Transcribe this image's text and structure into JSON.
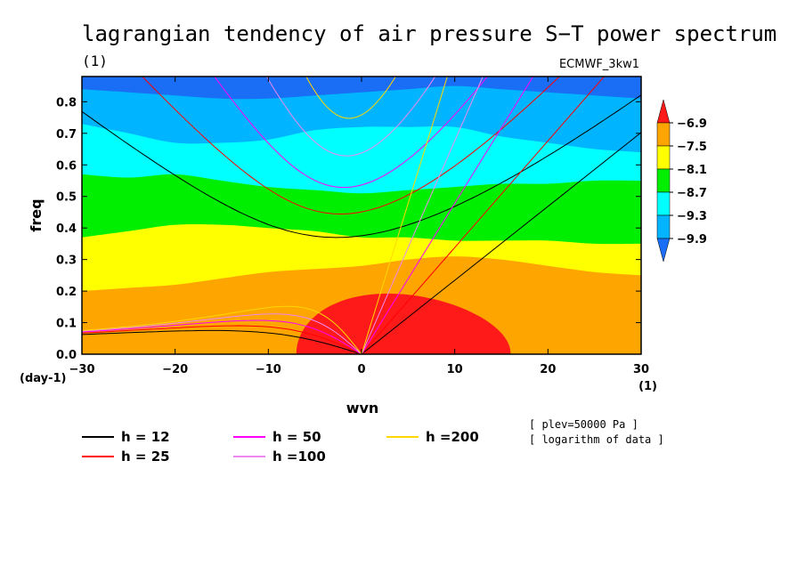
{
  "chart_data": {
    "type": "contourf",
    "title": "lagrangian tendency of air pressure S−T power spectrum",
    "subtitle_unit": "(1)",
    "dataset_label": "ECMWF_3kw1",
    "xlabel": "wvn",
    "ylabel": "freq",
    "x_unit": "(1)",
    "y_unit": "(day-1)",
    "xlim": [
      -30,
      30
    ],
    "ylim": [
      0,
      0.88
    ],
    "x_ticks": [
      -30,
      -20,
      -10,
      0,
      10,
      20,
      30
    ],
    "x_tick_labels": [
      "−30",
      "−20",
      "−10",
      "0",
      "10",
      "20",
      "30"
    ],
    "y_ticks": [
      0.0,
      0.1,
      0.2,
      0.3,
      0.4,
      0.5,
      0.6,
      0.7,
      0.8
    ],
    "y_tick_labels": [
      "0.0",
      "0.1",
      "0.2",
      "0.3",
      "0.4",
      "0.5",
      "0.6",
      "0.7",
      "0.8"
    ],
    "colorbar": {
      "levels": [
        -9.9,
        -9.3,
        -8.7,
        -8.1,
        -7.5,
        -6.9
      ],
      "level_labels": [
        "−9.9",
        "−9.3",
        "−8.7",
        "−8.1",
        "−7.5",
        "−6.9"
      ],
      "colors": [
        "#1a6ef5",
        "#00b4ff",
        "#00ffff",
        "#00ef00",
        "#ffff00",
        "#ffa500",
        "#ff1a1a"
      ]
    },
    "contour_boundaries_freq": [
      {
        "level": -9.9,
        "freq": [
          0.84,
          0.83,
          0.82,
          0.81,
          0.81,
          0.82,
          0.83,
          0.84,
          0.85,
          0.84,
          0.83,
          0.82,
          0.81
        ]
      },
      {
        "level": -9.3,
        "freq": [
          0.73,
          0.7,
          0.67,
          0.67,
          0.68,
          0.71,
          0.72,
          0.72,
          0.72,
          0.69,
          0.67,
          0.65,
          0.64
        ]
      },
      {
        "level": -8.7,
        "freq": [
          0.57,
          0.56,
          0.57,
          0.55,
          0.53,
          0.52,
          0.51,
          0.52,
          0.53,
          0.54,
          0.54,
          0.55,
          0.55
        ]
      },
      {
        "level": -8.1,
        "freq": [
          0.37,
          0.39,
          0.41,
          0.41,
          0.4,
          0.39,
          0.37,
          0.37,
          0.36,
          0.36,
          0.36,
          0.35,
          0.35
        ]
      },
      {
        "level": -7.5,
        "freq": [
          0.2,
          0.21,
          0.22,
          0.24,
          0.26,
          0.27,
          0.28,
          0.3,
          0.31,
          0.3,
          0.28,
          0.26,
          0.25
        ]
      }
    ],
    "contour_x": [
      -30,
      -25,
      -20,
      -15,
      -10,
      -5,
      0,
      5,
      10,
      15,
      20,
      25,
      30
    ],
    "legend": {
      "placement": "bottom",
      "items": [
        {
          "label": "h = 12",
          "color": "#000000"
        },
        {
          "label": "h = 25",
          "color": "#ff0000"
        },
        {
          "label": "h = 50",
          "color": "#ff00ff"
        },
        {
          "label": "h =100",
          "color": "#ee88ee"
        },
        {
          "label": "h =200",
          "color": "#ffd700"
        }
      ]
    },
    "equivalent_depths": [
      12,
      25,
      50,
      100,
      200
    ],
    "annotations": [
      "[ plev=50000 Pa ]",
      "[ logarithm of data ]"
    ]
  }
}
